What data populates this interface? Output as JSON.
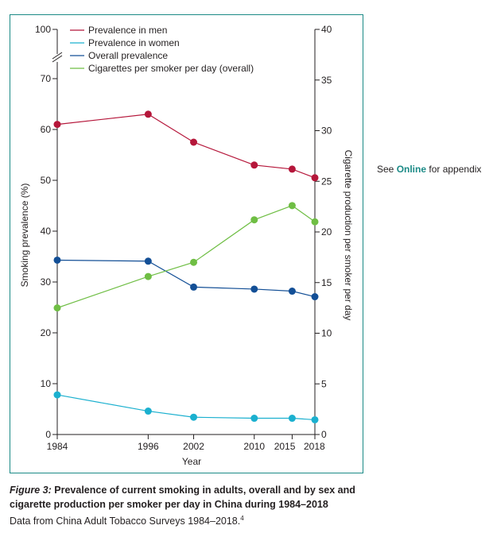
{
  "chart_data": {
    "type": "line",
    "x": [
      1984,
      1996,
      2002,
      2010,
      2015,
      2018
    ],
    "xlabel": "Year",
    "ylabel_left": "Smoking prevalence (%)",
    "ylabel_right": "Cigarette production per smoker per day",
    "left_axis": {
      "ticks": [
        0,
        10,
        20,
        30,
        40,
        50,
        60,
        70,
        100
      ],
      "break_between": [
        70,
        100
      ],
      "range": [
        0,
        100
      ]
    },
    "right_axis": {
      "ticks": [
        0,
        5,
        10,
        15,
        20,
        25,
        30,
        35,
        40
      ],
      "range": [
        0,
        40
      ]
    },
    "series": [
      {
        "name": "Prevalence in men",
        "axis": "left",
        "color": "#b5163a",
        "values": [
          61.0,
          63.0,
          57.5,
          53.0,
          52.2,
          50.5
        ]
      },
      {
        "name": "Prevalence in women",
        "axis": "left",
        "color": "#1bb0cf",
        "values": [
          7.8,
          4.6,
          3.4,
          3.2,
          3.2,
          2.9
        ]
      },
      {
        "name": "Overall prevalence",
        "axis": "left",
        "color": "#134f96",
        "values": [
          34.3,
          34.1,
          29.0,
          28.6,
          28.2,
          27.1
        ]
      },
      {
        "name": "Cigarettes per smoker per day (overall)",
        "axis": "right",
        "color": "#6fbe44",
        "values": [
          12.5,
          15.6,
          17.0,
          21.2,
          22.6,
          21.0
        ]
      }
    ]
  },
  "side_note": {
    "prefix": "See ",
    "link": "Online",
    "suffix": " for appendix"
  },
  "caption": {
    "figure_label": "Figure 3:",
    "title": " Prevalence of current smoking in adults, overall and by sex and cigarette production per smoker per day in China during 1984–2018",
    "source": "Data from China Adult Tobacco Surveys 1984–2018.",
    "ref": "4"
  },
  "colors": {
    "frame": "#1b8a86",
    "link": "#1b8a86"
  }
}
